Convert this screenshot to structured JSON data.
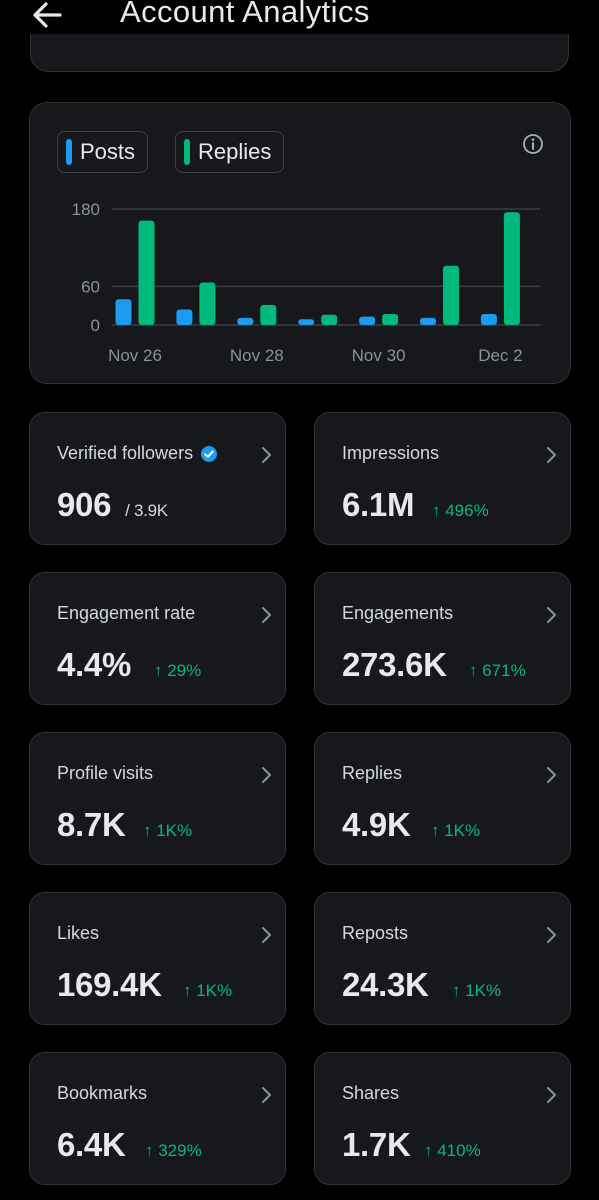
{
  "header": {
    "title": "Account Analytics"
  },
  "chart_data": {
    "type": "bar",
    "categories": [
      "Nov 26",
      "Nov 27",
      "Nov 28",
      "Nov 29",
      "Nov 30",
      "Dec 1",
      "Dec 2"
    ],
    "x_tick_labels": [
      "Nov 26",
      "Nov 28",
      "Nov 30",
      "Dec 2"
    ],
    "y_ticks": [
      0,
      60,
      180
    ],
    "ylim": [
      0,
      180
    ],
    "grid": true,
    "series": [
      {
        "name": "Posts",
        "color": "#1d9bf0",
        "values": [
          40,
          24,
          11,
          9,
          13,
          11,
          17
        ]
      },
      {
        "name": "Replies",
        "color": "#00ba7c",
        "values": [
          162,
          66,
          31,
          16,
          17,
          92,
          175
        ]
      }
    ]
  },
  "stats": [
    {
      "label": "Verified followers",
      "value": "906",
      "sub": "/ 3.9K",
      "change": "",
      "verified": true
    },
    {
      "label": "Impressions",
      "value": "6.1M",
      "change": "↑ 496%"
    },
    {
      "label": "Engagement rate",
      "value": "4.4%",
      "change": "↑ 29%"
    },
    {
      "label": "Engagements",
      "value": "273.6K",
      "change": "↑ 671%"
    },
    {
      "label": "Profile visits",
      "value": "8.7K",
      "change": "↑ 1K%"
    },
    {
      "label": "Replies",
      "value": "4.9K",
      "change": "↑ 1K%"
    },
    {
      "label": "Likes",
      "value": "169.4K",
      "change": "↑ 1K%"
    },
    {
      "label": "Reposts",
      "value": "24.3K",
      "change": "↑ 1K%"
    },
    {
      "label": "Bookmarks",
      "value": "6.4K",
      "change": "↑ 329%"
    },
    {
      "label": "Shares",
      "value": "1.7K",
      "change": "↑ 410%"
    }
  ],
  "icons": {
    "back": "arrow-left-icon",
    "info": "info-icon",
    "chevron": "chevron-right-icon",
    "verified": "verified-badge-icon"
  },
  "colors": {
    "background": "#000000",
    "card": "#16181c",
    "positive": "#00ba7c",
    "accent": "#1d9bf0"
  }
}
